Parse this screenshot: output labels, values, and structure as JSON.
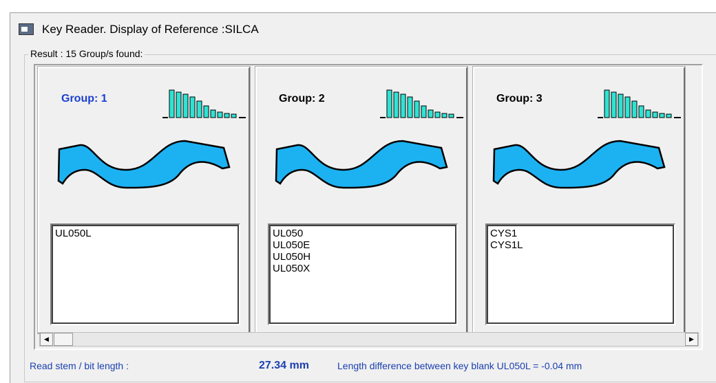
{
  "window": {
    "title": "Key Reader. Display of Reference :SILCA"
  },
  "result_label": "Result : 15 Group/s found:",
  "groups": [
    {
      "label": "Group: 1",
      "items": [
        "UL050L"
      ]
    },
    {
      "label": "Group: 2",
      "items": [
        "UL050",
        "UL050E",
        "UL050H",
        "UL050X"
      ]
    },
    {
      "label": "Group: 3",
      "items": [
        "CYS1",
        "CYS1L"
      ]
    }
  ],
  "footer": {
    "stem_label": "Read stem / bit length :",
    "stem_value": "27.34 mm",
    "difference": "Length difference between key blank UL050L = -0.04 mm"
  }
}
